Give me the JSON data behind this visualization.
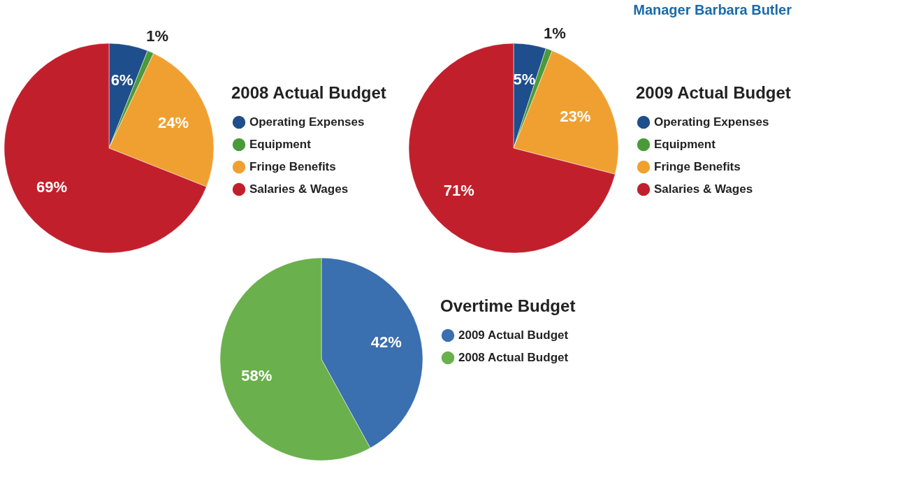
{
  "chart_data": [
    {
      "type": "pie",
      "title": "2008 Actual Budget",
      "categories": [
        "Operating Expenses",
        "Equipment",
        "Fringe Benefits",
        "Salaries & Wages"
      ],
      "values": [
        6,
        1,
        24,
        69
      ],
      "value_labels": [
        "6%",
        "1%",
        "24%",
        "69%"
      ],
      "colors": [
        "#1f4e8c",
        "#4a9a3c",
        "#f0a030",
        "#c21f2c"
      ],
      "legend": "right"
    },
    {
      "type": "pie",
      "title": "2009 Actual Budget",
      "categories": [
        "Operating Expenses",
        "Equipment",
        "Fringe Benefits",
        "Salaries & Wages"
      ],
      "values": [
        5,
        1,
        23,
        71
      ],
      "value_labels": [
        "5%",
        "1%",
        "23%",
        "71%"
      ],
      "colors": [
        "#1f4e8c",
        "#4a9a3c",
        "#f0a030",
        "#c21f2c"
      ],
      "legend": "right",
      "annotations": [
        "Manager Barbara Butler"
      ]
    },
    {
      "type": "pie",
      "title": "Overtime Budget",
      "categories": [
        "2009 Actual Budget",
        "2008 Actual Budget"
      ],
      "values": [
        42,
        58
      ],
      "value_labels": [
        "42%",
        "58%"
      ],
      "colors": [
        "#3a6fb0",
        "#6ab04c"
      ],
      "legend": "right"
    }
  ]
}
